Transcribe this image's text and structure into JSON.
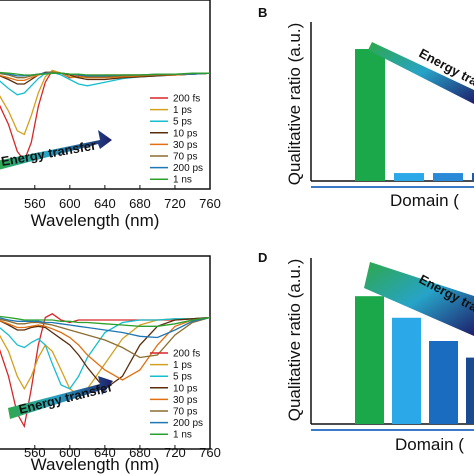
{
  "chart_data": [
    {
      "panel": "",
      "type": "line",
      "xlabel": "Wavelength (nm)",
      "ylabel": "",
      "xlim": [
        518,
        760
      ],
      "ylim": [
        -1.0,
        0.3
      ],
      "xticks": [
        "560",
        "600",
        "640",
        "680",
        "720",
        "760"
      ],
      "annotation": "Energy transfer",
      "legend_position": "right",
      "series": [
        {
          "name": "200 fs",
          "color": "#d62728",
          "x": [
            518,
            530,
            540,
            548,
            556,
            564,
            572,
            580,
            590,
            600,
            610,
            620,
            640,
            660,
            680,
            700,
            720,
            740,
            760
          ],
          "y": [
            -0.3,
            -0.55,
            -0.85,
            -0.95,
            -0.75,
            -0.35,
            -0.08,
            0.05,
            0.02,
            -0.03,
            -0.02,
            0.0,
            0.0,
            0.0,
            0.0,
            0.0,
            0.0,
            0.01,
            0.02
          ]
        },
        {
          "name": "1 ps",
          "color": "#d4a020",
          "x": [
            518,
            530,
            540,
            548,
            556,
            564,
            572,
            580,
            590,
            600,
            610,
            620,
            640,
            660,
            680,
            700,
            720,
            740,
            760
          ],
          "y": [
            -0.2,
            -0.4,
            -0.62,
            -0.66,
            -0.45,
            -0.2,
            -0.02,
            0.05,
            0.02,
            -0.02,
            -0.03,
            -0.02,
            0.0,
            0.0,
            0.0,
            0.0,
            0.01,
            0.01,
            0.02
          ]
        },
        {
          "name": "5 ps",
          "color": "#17becf",
          "x": [
            518,
            530,
            540,
            548,
            556,
            564,
            572,
            580,
            590,
            600,
            610,
            620,
            640,
            660,
            680,
            700,
            720,
            740,
            760
          ],
          "y": [
            -0.05,
            -0.15,
            -0.22,
            -0.2,
            -0.12,
            -0.04,
            0.02,
            0.03,
            0.0,
            -0.05,
            -0.1,
            -0.12,
            -0.08,
            -0.04,
            -0.02,
            -0.01,
            0.0,
            0.01,
            0.02
          ]
        },
        {
          "name": "10 ps",
          "color": "#5a2d0c",
          "x": [
            518,
            530,
            540,
            548,
            556,
            564,
            572,
            580,
            590,
            600,
            610,
            620,
            640,
            660,
            680,
            700,
            720,
            740,
            760
          ],
          "y": [
            0.0,
            -0.05,
            -0.1,
            -0.1,
            -0.05,
            0.0,
            0.03,
            0.03,
            0.02,
            0.0,
            -0.03,
            -0.05,
            -0.05,
            -0.03,
            -0.02,
            -0.01,
            0.0,
            0.01,
            0.02
          ]
        },
        {
          "name": "30 ps",
          "color": "#e07010",
          "x": [
            518,
            530,
            540,
            548,
            556,
            564,
            572,
            580,
            590,
            600,
            610,
            620,
            640,
            660,
            680,
            700,
            720,
            740,
            760
          ],
          "y": [
            0.0,
            -0.03,
            -0.06,
            -0.06,
            -0.03,
            0.0,
            0.02,
            0.03,
            0.02,
            0.01,
            -0.01,
            -0.03,
            -0.03,
            -0.02,
            -0.01,
            0.0,
            0.0,
            0.01,
            0.02
          ]
        },
        {
          "name": "70 ps",
          "color": "#8c6d31",
          "x": [
            518,
            530,
            540,
            548,
            556,
            564,
            572,
            580,
            590,
            600,
            610,
            620,
            640,
            660,
            680,
            700,
            720,
            740,
            760
          ],
          "y": [
            0.02,
            0.0,
            -0.03,
            -0.03,
            -0.01,
            0.01,
            0.02,
            0.03,
            0.02,
            0.01,
            0.0,
            -0.02,
            -0.02,
            -0.01,
            0.0,
            0.0,
            0.01,
            0.01,
            0.02
          ]
        },
        {
          "name": "200 ps",
          "color": "#1f77b4",
          "x": [
            518,
            530,
            540,
            548,
            556,
            564,
            572,
            580,
            590,
            600,
            610,
            620,
            640,
            660,
            680,
            700,
            720,
            740,
            760
          ],
          "y": [
            0.03,
            0.01,
            -0.01,
            -0.01,
            0.0,
            0.01,
            0.02,
            0.02,
            0.02,
            0.01,
            0.0,
            -0.01,
            -0.01,
            0.0,
            0.0,
            0.01,
            0.01,
            0.01,
            0.02
          ]
        },
        {
          "name": "1 ns",
          "color": "#2ca02c",
          "x": [
            518,
            530,
            540,
            548,
            556,
            564,
            572,
            580,
            590,
            600,
            610,
            620,
            640,
            660,
            680,
            700,
            720,
            740,
            760
          ],
          "y": [
            0.03,
            0.02,
            0.01,
            0.0,
            0.0,
            0.01,
            0.01,
            0.02,
            0.02,
            0.01,
            0.01,
            0.0,
            0.0,
            0.0,
            0.0,
            0.01,
            0.01,
            0.02,
            0.02
          ]
        }
      ]
    },
    {
      "panel": "B",
      "type": "bar",
      "xlabel": "Domain (",
      "ylabel": "Qualitative ratio (a.u.)",
      "ylim": [
        0,
        1
      ],
      "annotation": "Energy tra",
      "values": [
        0.83,
        0.05,
        0.05,
        0.05
      ],
      "colors": [
        "#1aa84a",
        "#2aa8e8",
        "#2a8ad8",
        "#1a5aa8"
      ]
    },
    {
      "panel": "",
      "type": "line",
      "xlabel": "Wavelength (nm)",
      "ylabel": "",
      "xlim": [
        518,
        760
      ],
      "ylim": [
        -1.0,
        0.3
      ],
      "xticks": [
        "560",
        "600",
        "640",
        "680",
        "720",
        "760"
      ],
      "annotation": "Energy transfer",
      "legend_position": "right",
      "series": [
        {
          "name": "200 fs",
          "color": "#d62728",
          "x": [
            518,
            530,
            540,
            548,
            556,
            564,
            572,
            580,
            590,
            600,
            610,
            620,
            640,
            660,
            680,
            700,
            720,
            740,
            760
          ],
          "y": [
            -0.2,
            -0.45,
            -0.75,
            -0.85,
            -0.55,
            -0.2,
            0.02,
            0.05,
            0.0,
            -0.02,
            0.0,
            0.0,
            0.0,
            0.0,
            0.0,
            0.0,
            0.0,
            0.01,
            0.02
          ]
        },
        {
          "name": "1 ps",
          "color": "#d4a020",
          "x": [
            518,
            530,
            540,
            548,
            556,
            564,
            572,
            580,
            590,
            600,
            610,
            620,
            640,
            660,
            680,
            700,
            720,
            740,
            760
          ],
          "y": [
            -0.1,
            -0.25,
            -0.45,
            -0.55,
            -0.45,
            -0.3,
            -0.2,
            -0.25,
            -0.4,
            -0.55,
            -0.6,
            -0.55,
            -0.35,
            -0.15,
            -0.04,
            0.0,
            0.01,
            0.01,
            0.02
          ]
        },
        {
          "name": "5 ps",
          "color": "#17becf",
          "x": [
            518,
            530,
            540,
            548,
            556,
            564,
            572,
            580,
            590,
            600,
            610,
            620,
            640,
            660,
            680,
            700,
            720,
            740,
            760
          ],
          "y": [
            -0.05,
            -0.12,
            -0.2,
            -0.22,
            -0.18,
            -0.15,
            -0.2,
            -0.35,
            -0.52,
            -0.55,
            -0.45,
            -0.3,
            -0.1,
            -0.02,
            0.0,
            0.0,
            0.01,
            0.01,
            0.02
          ]
        },
        {
          "name": "10 ps",
          "color": "#5a2d0c",
          "x": [
            518,
            530,
            540,
            548,
            556,
            564,
            572,
            580,
            590,
            600,
            610,
            620,
            640,
            660,
            680,
            700,
            720,
            740,
            760
          ],
          "y": [
            0.0,
            -0.04,
            -0.08,
            -0.08,
            -0.06,
            -0.05,
            -0.06,
            -0.1,
            -0.15,
            -0.2,
            -0.28,
            -0.38,
            -0.55,
            -0.45,
            -0.2,
            -0.05,
            0.0,
            0.01,
            0.02
          ]
        },
        {
          "name": "30 ps",
          "color": "#e07010",
          "x": [
            518,
            530,
            540,
            548,
            556,
            564,
            572,
            580,
            590,
            600,
            610,
            620,
            640,
            660,
            680,
            700,
            720,
            740,
            760
          ],
          "y": [
            0.0,
            -0.03,
            -0.06,
            -0.06,
            -0.05,
            -0.04,
            -0.05,
            -0.07,
            -0.1,
            -0.14,
            -0.2,
            -0.28,
            -0.4,
            -0.48,
            -0.4,
            -0.2,
            -0.05,
            0.0,
            0.02
          ]
        },
        {
          "name": "70 ps",
          "color": "#8c6d31",
          "x": [
            518,
            530,
            540,
            548,
            556,
            564,
            572,
            580,
            590,
            600,
            610,
            620,
            640,
            660,
            680,
            700,
            720,
            740,
            760
          ],
          "y": [
            0.01,
            -0.01,
            -0.03,
            -0.03,
            -0.02,
            -0.02,
            -0.03,
            -0.04,
            -0.06,
            -0.08,
            -0.1,
            -0.12,
            -0.16,
            -0.22,
            -0.3,
            -0.28,
            -0.12,
            -0.02,
            0.02
          ]
        },
        {
          "name": "200 ps",
          "color": "#1f77b4",
          "x": [
            518,
            530,
            540,
            548,
            556,
            564,
            572,
            580,
            590,
            600,
            610,
            620,
            640,
            660,
            680,
            700,
            720,
            740,
            760
          ],
          "y": [
            0.02,
            0.0,
            -0.01,
            -0.01,
            -0.01,
            -0.01,
            -0.02,
            -0.02,
            -0.03,
            -0.04,
            -0.05,
            -0.06,
            -0.08,
            -0.1,
            -0.13,
            -0.14,
            -0.08,
            -0.01,
            0.02
          ]
        },
        {
          "name": "1 ns",
          "color": "#2ca02c",
          "x": [
            518,
            530,
            540,
            548,
            556,
            564,
            572,
            580,
            590,
            600,
            610,
            620,
            640,
            660,
            680,
            700,
            720,
            740,
            760
          ],
          "y": [
            0.03,
            0.02,
            0.01,
            0.0,
            0.0,
            0.0,
            0.0,
            0.0,
            -0.01,
            -0.01,
            -0.02,
            -0.02,
            -0.03,
            -0.04,
            -0.05,
            -0.05,
            -0.03,
            0.0,
            0.02
          ]
        }
      ]
    },
    {
      "panel": "D",
      "type": "bar",
      "xlabel": "Domain (",
      "ylabel": "Qualitative ratio (a.u.)",
      "ylim": [
        0,
        1
      ],
      "annotation": "Energy tra",
      "values": [
        0.77,
        0.64,
        0.5,
        0.4
      ],
      "colors": [
        "#1aa84a",
        "#2aa8e8",
        "#1a6cc0",
        "#1a4a90"
      ]
    }
  ]
}
